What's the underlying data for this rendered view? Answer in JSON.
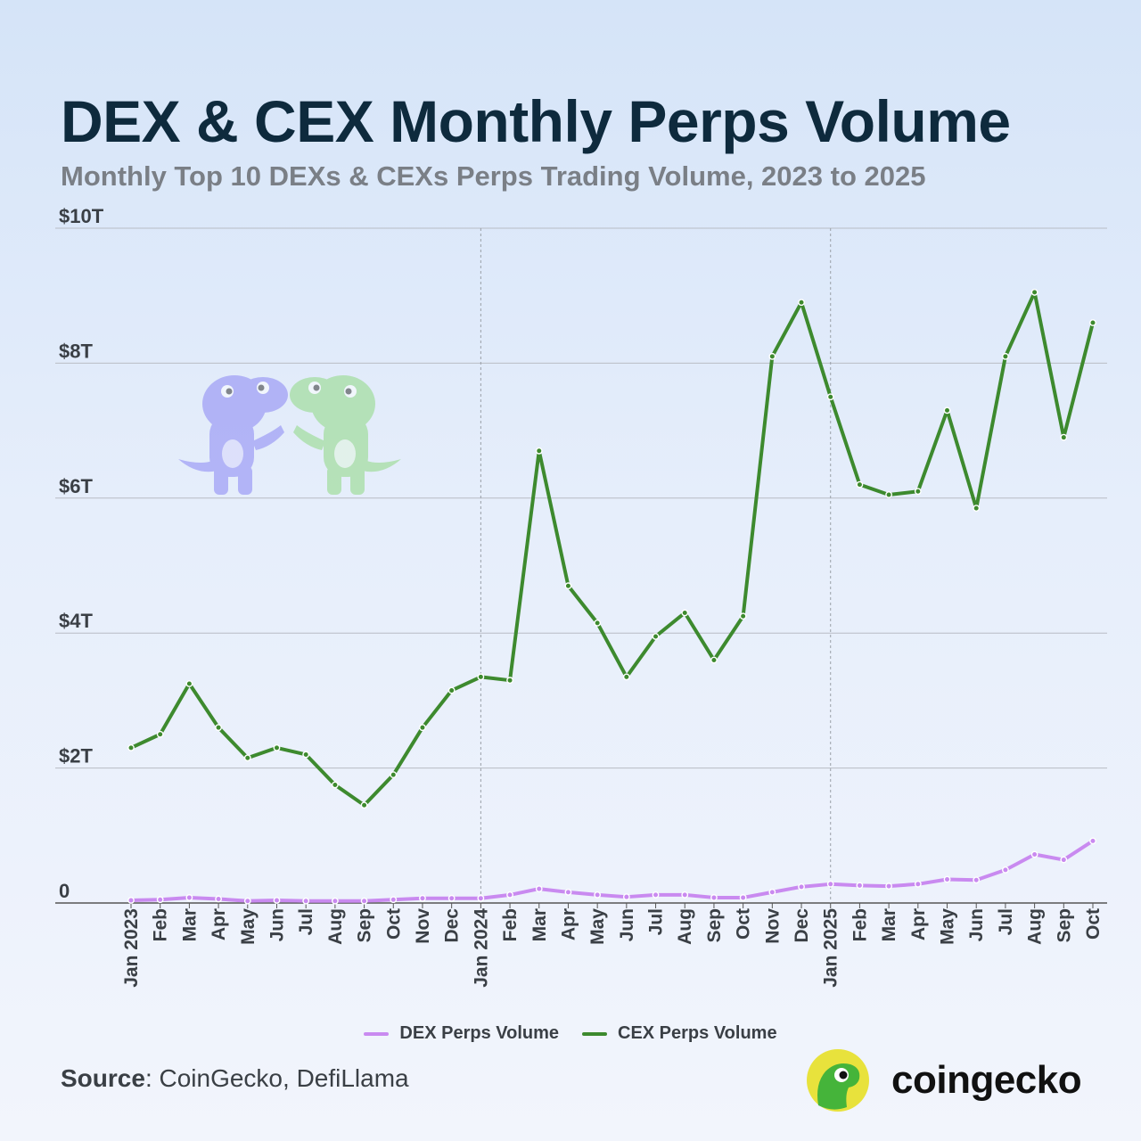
{
  "title": "DEX & CEX Monthly Perps Volume",
  "subtitle": "Monthly Top 10 DEXs & CEXs Perps Trading Volume, 2023 to 2025",
  "source_label": "Source",
  "source_text": ": CoinGecko, DefiLlama",
  "brand": {
    "name": "coingecko",
    "logo_icon": "coingecko-gecko-logo",
    "mascot_icon": "gecko-mascots-illustration"
  },
  "colors": {
    "dex": "#c98af0",
    "cex": "#3d8a2e",
    "grid": "#b8bcc4",
    "divider": "#9aa0a8"
  },
  "chart_data": {
    "type": "line",
    "title": "DEX & CEX Monthly Perps Volume",
    "subtitle": "Monthly Top 10 DEXs & CEXs Perps Trading Volume, 2023 to 2025",
    "xlabel": "",
    "ylabel": "",
    "ylim": [
      0,
      10
    ],
    "y_unit": "trillion USD",
    "y_ticks": [
      0,
      2,
      4,
      6,
      8,
      10
    ],
    "y_tick_labels": [
      "0",
      "$2T",
      "$4T",
      "$6T",
      "$8T",
      "$10T"
    ],
    "grid": true,
    "legend_position": "bottom-center",
    "vertical_dividers_at": [
      "Jan 2024",
      "Jan 2025"
    ],
    "categories": [
      "Jan 2023",
      "Feb",
      "Mar",
      "Apr",
      "May",
      "Jun",
      "Jul",
      "Aug",
      "Sep",
      "Oct",
      "Nov",
      "Dec",
      "Jan 2024",
      "Feb",
      "Mar",
      "Apr",
      "May",
      "Jun",
      "Jul",
      "Aug",
      "Sep",
      "Oct",
      "Nov",
      "Dec",
      "Jan 2025",
      "Feb",
      "Mar",
      "Apr",
      "May",
      "Jun",
      "Jul",
      "Aug",
      "Sep",
      "Oct"
    ],
    "series": [
      {
        "name": "DEX Perps Volume",
        "color": "#c98af0",
        "values": [
          0.04,
          0.05,
          0.08,
          0.06,
          0.03,
          0.04,
          0.03,
          0.03,
          0.03,
          0.05,
          0.07,
          0.07,
          0.07,
          0.12,
          0.21,
          0.16,
          0.12,
          0.09,
          0.12,
          0.12,
          0.08,
          0.08,
          0.16,
          0.24,
          0.28,
          0.26,
          0.25,
          0.28,
          0.35,
          0.34,
          0.49,
          0.72,
          0.64,
          0.92
        ]
      },
      {
        "name": "CEX Perps Volume",
        "color": "#3d8a2e",
        "values": [
          2.3,
          2.5,
          3.25,
          2.6,
          2.15,
          2.3,
          2.2,
          1.75,
          1.45,
          1.9,
          2.6,
          3.15,
          3.35,
          3.3,
          6.7,
          4.7,
          4.15,
          3.35,
          3.95,
          4.3,
          3.6,
          4.25,
          8.1,
          8.9,
          7.5,
          6.2,
          6.05,
          6.1,
          7.3,
          5.85,
          8.1,
          9.05,
          6.9,
          8.6
        ]
      }
    ]
  }
}
